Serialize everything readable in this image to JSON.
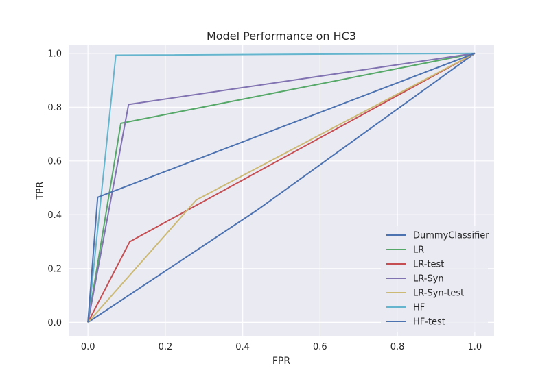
{
  "chart_data": {
    "type": "line",
    "title": "Model Performance on HC3",
    "xlabel": "FPR",
    "ylabel": "TPR",
    "xlim": [
      -0.05,
      1.05
    ],
    "ylim": [
      -0.05,
      1.03
    ],
    "xticks": [
      0.0,
      0.2,
      0.4,
      0.6,
      0.8,
      1.0
    ],
    "yticks": [
      0.0,
      0.2,
      0.4,
      0.6,
      0.8,
      1.0
    ],
    "xtick_labels": [
      "0.0",
      "0.2",
      "0.4",
      "0.6",
      "0.8",
      "1.0"
    ],
    "ytick_labels": [
      "0.0",
      "0.2",
      "0.4",
      "0.6",
      "0.8",
      "1.0"
    ],
    "grid": true,
    "legend_position": "lower-right",
    "series": [
      {
        "name": "DummyClassifier",
        "color": "#4c72b0",
        "x": [
          0.0,
          0.44,
          1.0
        ],
        "y": [
          0.0,
          0.42,
          1.0
        ]
      },
      {
        "name": "LR",
        "color": "#55a868",
        "x": [
          0.0,
          0.085,
          1.0
        ],
        "y": [
          0.0,
          0.74,
          1.0
        ]
      },
      {
        "name": "LR-test",
        "color": "#c44e52",
        "x": [
          0.0,
          0.108,
          1.0
        ],
        "y": [
          0.0,
          0.3,
          1.0
        ]
      },
      {
        "name": "LR-Syn",
        "color": "#8172b2",
        "x": [
          0.0,
          0.105,
          1.0
        ],
        "y": [
          0.0,
          0.81,
          1.0
        ]
      },
      {
        "name": "LR-Syn-test",
        "color": "#ccb974",
        "x": [
          0.0,
          0.28,
          1.0
        ],
        "y": [
          0.0,
          0.455,
          1.0
        ]
      },
      {
        "name": "HF",
        "color": "#64b5cd",
        "x": [
          0.0,
          0.072,
          1.0
        ],
        "y": [
          0.0,
          0.993,
          1.0
        ]
      },
      {
        "name": "HF-test",
        "color": "#4c72b0",
        "x": [
          0.0,
          0.025,
          1.0
        ],
        "y": [
          0.0,
          0.465,
          1.0
        ]
      }
    ]
  }
}
